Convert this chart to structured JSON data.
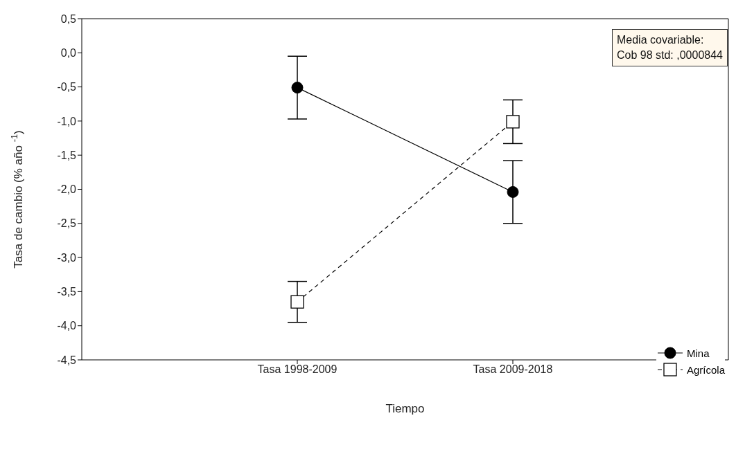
{
  "chart_data": {
    "type": "line",
    "xlabel": "Tiempo",
    "ylabel": "Tasa de cambio (% año $^{-1}$)",
    "categories": [
      "Tasa 1998-2009",
      "Tasa 2009-2018"
    ],
    "series": [
      {
        "name": "Mina",
        "color": "#000000",
        "values": [
          -0.51,
          -2.04
        ],
        "errors": [
          0.46,
          0.46
        ],
        "marker": "circle",
        "line_style": "solid"
      },
      {
        "name": "Agrícola",
        "color": "#000000",
        "values": [
          -3.65,
          -1.01
        ],
        "errors": [
          0.3,
          0.32
        ],
        "marker": "square",
        "line_style": "dashed"
      }
    ],
    "ylim": [
      -4.5,
      0.5
    ],
    "yticks": [
      {
        "value": 0.5,
        "label": "0,5"
      },
      {
        "value": 0,
        "label": "0,0"
      },
      {
        "value": -0.5,
        "label": "-0,5"
      },
      {
        "value": -1,
        "label": "-1,0"
      },
      {
        "value": -1.5,
        "label": "-1,5"
      },
      {
        "value": -2,
        "label": "-2,0"
      },
      {
        "value": -2.5,
        "label": "-2,5"
      },
      {
        "value": -3,
        "label": "-3,0"
      },
      {
        "value": -3.5,
        "label": "-3,5"
      },
      {
        "value": -4,
        "label": "-4,0"
      },
      {
        "value": -4.5,
        "label": "-4,5"
      }
    ],
    "annotations": [
      "Media covariable:\nCob 98 std: ,0000844"
    ],
    "legend": "bottom right",
    "grid": false
  }
}
